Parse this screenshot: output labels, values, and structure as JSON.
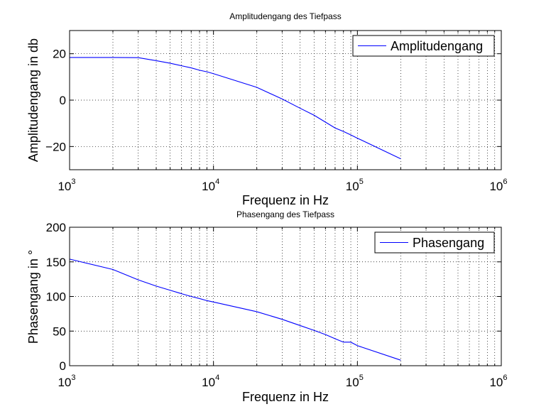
{
  "chart_data": [
    {
      "type": "line",
      "title": "Amplitudengang des Tiefpass",
      "xlabel": "Frequenz in Hz",
      "ylabel": "Amplitudengang in db",
      "xscale": "log",
      "xlim": [
        1000,
        1000000
      ],
      "ylim": [
        -30,
        30
      ],
      "xticks": [
        {
          "base": "10",
          "exp": "3"
        },
        {
          "base": "10",
          "exp": "4"
        },
        {
          "base": "10",
          "exp": "5"
        },
        {
          "base": "10",
          "exp": "6"
        }
      ],
      "yticks": [
        20,
        0,
        -20
      ],
      "ytick_labels": [
        "20",
        "0",
        "−20"
      ],
      "grid": true,
      "legend_position": "top-right",
      "color": "#0000ff",
      "series": [
        {
          "name": "Amplitudengang",
          "x": [
            1000,
            2000,
            3000,
            4000,
            5000,
            6000,
            7000,
            8000,
            9000,
            10000,
            20000,
            30000,
            40000,
            50000,
            60000,
            70000,
            80000,
            90000,
            100000,
            200000
          ],
          "y": [
            18.4,
            18.4,
            18.3,
            17.0,
            15.9,
            14.8,
            13.9,
            12.9,
            12.2,
            11.4,
            5.5,
            0.5,
            -3.5,
            -6.5,
            -9.5,
            -12.0,
            -13.5,
            -15.0,
            -16.4,
            -25.3
          ]
        }
      ]
    },
    {
      "type": "line",
      "title": "Phasengang des Tiefpass",
      "xlabel": "Frequenz in Hz",
      "ylabel": "Phasengang in °",
      "xscale": "log",
      "xlim": [
        1000,
        1000000
      ],
      "ylim": [
        0,
        200
      ],
      "xticks": [
        {
          "base": "10",
          "exp": "3"
        },
        {
          "base": "10",
          "exp": "4"
        },
        {
          "base": "10",
          "exp": "5"
        },
        {
          "base": "10",
          "exp": "6"
        }
      ],
      "yticks": [
        200,
        150,
        100,
        50,
        0
      ],
      "ytick_labels": [
        "200",
        "150",
        "100",
        "50",
        "0"
      ],
      "grid": true,
      "legend_position": "top-right",
      "color": "#0000ff",
      "series": [
        {
          "name": "Phasengang",
          "x": [
            1000,
            2000,
            3000,
            4000,
            5000,
            6000,
            7000,
            8000,
            9000,
            10000,
            20000,
            30000,
            40000,
            50000,
            60000,
            70000,
            80000,
            90000,
            100000,
            200000
          ],
          "y": [
            154,
            139,
            124,
            115,
            109,
            104,
            100,
            97,
            94,
            92,
            78,
            67,
            58,
            51,
            45,
            39,
            34,
            34,
            29,
            8
          ]
        }
      ]
    }
  ]
}
